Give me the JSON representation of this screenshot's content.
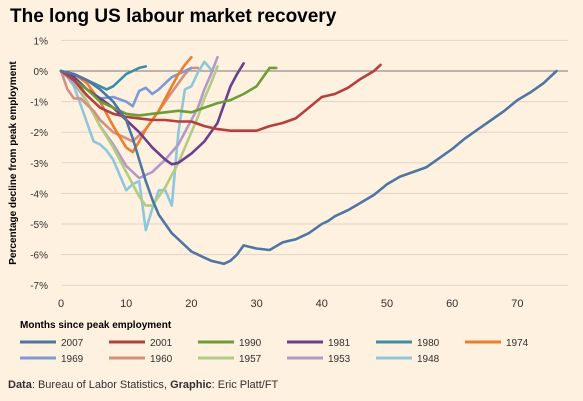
{
  "title": "The long US labour market recovery",
  "source": {
    "data_label": "Data",
    "data_value": "Bureau of Labor Statistics",
    "graphic_label": "Graphic",
    "graphic_value": "Eric Platt/FT"
  },
  "chart_data": {
    "type": "line",
    "title": "The long US labour market recovery",
    "xlabel": "Months since peak employment",
    "ylabel": "Percentage decline from peak employment",
    "xlim": [
      0,
      80
    ],
    "ylim": [
      -7,
      1
    ],
    "x_ticks": [
      0,
      10,
      20,
      30,
      40,
      50,
      60,
      70
    ],
    "y_ticks": [
      1,
      0,
      -1,
      -2,
      -3,
      -4,
      -5,
      -6,
      -7
    ],
    "y_tick_labels": [
      "1%",
      "0%",
      "-1%",
      "-2%",
      "-3%",
      "-4%",
      "-5%",
      "-6%",
      "-7%"
    ],
    "grid": "horizontal",
    "legend_position": "bottom",
    "series": [
      {
        "name": "2007",
        "color": "#4e76a5",
        "x": [
          0,
          2,
          4,
          6,
          8,
          10,
          11,
          12,
          13,
          14,
          15,
          16,
          17,
          18,
          19,
          20,
          21,
          22,
          23,
          24,
          25,
          26,
          27,
          28,
          29,
          30,
          32,
          34,
          35,
          36,
          38,
          40,
          41,
          42,
          44,
          46,
          48,
          50,
          52,
          54,
          56,
          58,
          60,
          62,
          64,
          66,
          68,
          70,
          72,
          74,
          76
        ],
        "y": [
          0,
          -0.1,
          -0.3,
          -0.6,
          -1.0,
          -1.6,
          -2.2,
          -2.9,
          -3.6,
          -4.2,
          -4.7,
          -5.0,
          -5.3,
          -5.5,
          -5.7,
          -5.9,
          -6.0,
          -6.1,
          -6.2,
          -6.25,
          -6.3,
          -6.2,
          -6.0,
          -5.7,
          -5.75,
          -5.8,
          -5.85,
          -5.6,
          -5.55,
          -5.5,
          -5.3,
          -5.0,
          -4.9,
          -4.75,
          -4.55,
          -4.3,
          -4.05,
          -3.7,
          -3.45,
          -3.3,
          -3.15,
          -2.85,
          -2.55,
          -2.2,
          -1.9,
          -1.6,
          -1.3,
          -0.95,
          -0.7,
          -0.4,
          0.0
        ]
      },
      {
        "name": "2001",
        "color": "#b53f3f",
        "x": [
          0,
          2,
          4,
          6,
          8,
          10,
          12,
          14,
          16,
          18,
          20,
          22,
          24,
          26,
          28,
          30,
          32,
          34,
          36,
          38,
          40,
          42,
          44,
          46,
          48,
          49
        ],
        "y": [
          0,
          -0.3,
          -0.8,
          -1.2,
          -1.4,
          -1.5,
          -1.55,
          -1.6,
          -1.6,
          -1.65,
          -1.65,
          -1.8,
          -1.9,
          -1.95,
          -1.95,
          -1.95,
          -1.8,
          -1.7,
          -1.55,
          -1.2,
          -0.85,
          -0.75,
          -0.55,
          -0.25,
          0.0,
          0.2
        ]
      },
      {
        "name": "1990",
        "color": "#6d9d35",
        "x": [
          0,
          2,
          4,
          6,
          8,
          10,
          12,
          14,
          16,
          18,
          20,
          22,
          24,
          26,
          28,
          30,
          32,
          33
        ],
        "y": [
          0,
          -0.3,
          -0.6,
          -1.0,
          -1.2,
          -1.4,
          -1.45,
          -1.4,
          -1.35,
          -1.3,
          -1.35,
          -1.2,
          -1.05,
          -0.95,
          -0.75,
          -0.5,
          0.1,
          0.1
        ]
      },
      {
        "name": "1981",
        "color": "#6b3f8e",
        "x": [
          0,
          2,
          4,
          6,
          8,
          10,
          12,
          14,
          16,
          17,
          18,
          20,
          22,
          24,
          26,
          27,
          28
        ],
        "y": [
          0,
          -0.2,
          -0.6,
          -0.9,
          -1.2,
          -1.6,
          -2.0,
          -2.5,
          -2.9,
          -3.05,
          -3.0,
          -2.7,
          -2.3,
          -1.7,
          -0.5,
          -0.1,
          0.25
        ]
      },
      {
        "name": "1980",
        "color": "#3a8fa8",
        "x": [
          0,
          2,
          4,
          6,
          7,
          8,
          9,
          10,
          11,
          12,
          13
        ],
        "y": [
          0,
          -0.1,
          -0.3,
          -0.5,
          -0.6,
          -0.5,
          -0.3,
          -0.1,
          0.0,
          0.1,
          0.15
        ]
      },
      {
        "name": "1974",
        "color": "#ec7d2b",
        "x": [
          0,
          2,
          4,
          6,
          8,
          10,
          11,
          12,
          13,
          14,
          15,
          16,
          17,
          18,
          19,
          20
        ],
        "y": [
          0,
          -0.1,
          -0.4,
          -1.0,
          -1.8,
          -2.5,
          -2.65,
          -2.3,
          -1.9,
          -1.6,
          -1.3,
          -0.9,
          -0.5,
          -0.1,
          0.2,
          0.45
        ]
      },
      {
        "name": "1969",
        "color": "#7b9ad6",
        "x": [
          0,
          2,
          4,
          6,
          8,
          10,
          11,
          12,
          13,
          14,
          15,
          16,
          17,
          18,
          19,
          20
        ],
        "y": [
          0,
          -0.3,
          -0.6,
          -0.9,
          -0.85,
          -1.0,
          -1.15,
          -0.65,
          -0.55,
          -0.75,
          -0.6,
          -0.4,
          -0.2,
          -0.1,
          0.0,
          0.1
        ]
      },
      {
        "name": "1960",
        "color": "#d4907e",
        "x": [
          0,
          1,
          2,
          3,
          4,
          5,
          6,
          7,
          8,
          9,
          10,
          11,
          12,
          13,
          14,
          15,
          16,
          17,
          18,
          19,
          20,
          21
        ],
        "y": [
          0,
          -0.6,
          -0.9,
          -0.9,
          -1.1,
          -1.3,
          -1.6,
          -1.8,
          -2.0,
          -2.1,
          -2.2,
          -2.3,
          -2.1,
          -1.9,
          -1.6,
          -1.3,
          -1.0,
          -0.7,
          -0.4,
          -0.1,
          0.1,
          0.1
        ]
      },
      {
        "name": "1957",
        "color": "#b2cc82",
        "x": [
          0,
          2,
          4,
          6,
          8,
          10,
          12,
          13,
          14,
          15,
          16,
          17,
          18,
          19,
          20,
          21,
          22,
          23,
          24
        ],
        "y": [
          0,
          -0.3,
          -1.0,
          -1.8,
          -2.5,
          -3.3,
          -4.1,
          -4.4,
          -4.4,
          -4.1,
          -3.8,
          -3.4,
          -3.0,
          -2.5,
          -2.0,
          -1.5,
          -0.9,
          -0.4,
          0.15
        ]
      },
      {
        "name": "1953",
        "color": "#b299c9",
        "x": [
          0,
          2,
          4,
          6,
          8,
          10,
          12,
          14,
          16,
          18,
          20,
          21,
          22,
          23,
          24
        ],
        "y": [
          0,
          -0.4,
          -1.0,
          -1.8,
          -2.4,
          -3.1,
          -3.5,
          -3.3,
          -2.9,
          -2.4,
          -1.6,
          -1.2,
          -0.6,
          -0.1,
          0.45
        ]
      },
      {
        "name": "1948",
        "color": "#8dc6dd",
        "x": [
          0,
          1,
          2,
          3,
          4,
          5,
          6,
          7,
          8,
          9,
          10,
          11,
          12,
          13,
          14,
          15,
          16,
          17,
          18,
          19,
          20,
          21,
          22,
          23
        ],
        "y": [
          0,
          -0.2,
          -0.5,
          -1.1,
          -1.7,
          -2.3,
          -2.4,
          -2.6,
          -2.9,
          -3.4,
          -3.9,
          -3.7,
          -3.6,
          -5.2,
          -4.5,
          -3.9,
          -3.9,
          -4.4,
          -2.0,
          -0.6,
          -0.5,
          -0.05,
          0.3,
          0.05
        ]
      }
    ]
  }
}
